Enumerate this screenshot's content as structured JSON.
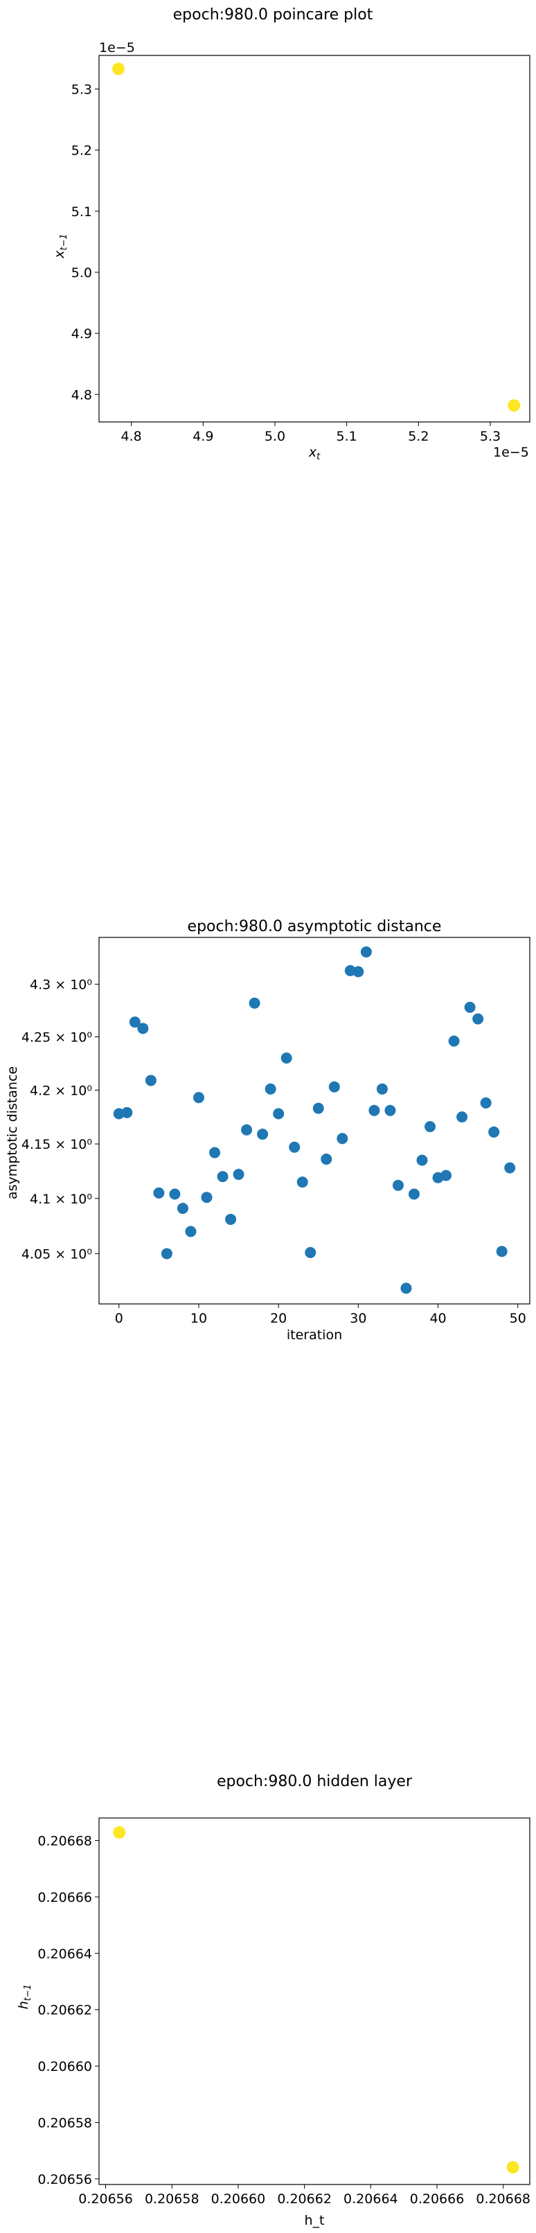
{
  "chart_data": [
    {
      "type": "scatter",
      "title": "epoch:980.0 poincare plot",
      "xlabel": "x_t",
      "ylabel": "x_{t-1}",
      "x_offset_text": "1e−5",
      "y_offset_text": "1e−5",
      "xlim": [
        4.755,
        5.355
      ],
      "ylim": [
        4.755,
        5.355
      ],
      "x_ticks": [
        4.8,
        4.9,
        5.0,
        5.1,
        5.2,
        5.3
      ],
      "y_ticks": [
        4.8,
        4.9,
        5.0,
        5.1,
        5.2,
        5.3
      ],
      "x_tick_labels": [
        "4.8",
        "4.9",
        "5.0",
        "5.1",
        "5.2",
        "5.3"
      ],
      "y_tick_labels": [
        "4.8",
        "4.9",
        "5.0",
        "5.1",
        "5.2",
        "5.3"
      ],
      "grid": false,
      "marker_color": "#fde725",
      "points": [
        {
          "x": 4.782,
          "y": 5.333
        },
        {
          "x": 5.333,
          "y": 4.782
        }
      ]
    },
    {
      "type": "scatter",
      "title": "epoch:980.0 asymptotic distance",
      "xlabel": "iteration",
      "ylabel": "asymptotic distance",
      "y_scale": "log",
      "xlim": [
        -2.5,
        51.5
      ],
      "ylim": [
        4.005,
        4.345
      ],
      "x_ticks": [
        0,
        10,
        20,
        30,
        40,
        50
      ],
      "x_tick_labels": [
        "0",
        "10",
        "20",
        "30",
        "40",
        "50"
      ],
      "y_ticks": [
        4.05,
        4.1,
        4.15,
        4.2,
        4.25,
        4.3
      ],
      "y_tick_labels": [
        "4.05 × 10⁰",
        "4.1 × 10⁰",
        "4.15 × 10⁰",
        "4.2 × 10⁰",
        "4.25 × 10⁰",
        "4.3 × 10⁰"
      ],
      "grid": false,
      "marker_color": "#1f77b4",
      "x": [
        0,
        1,
        2,
        3,
        4,
        5,
        6,
        7,
        8,
        9,
        10,
        11,
        12,
        13,
        14,
        15,
        16,
        17,
        18,
        19,
        20,
        21,
        22,
        23,
        24,
        25,
        26,
        27,
        28,
        29,
        30,
        31,
        32,
        33,
        34,
        35,
        36,
        37,
        38,
        39,
        40,
        41,
        42,
        43,
        44,
        45,
        46,
        47,
        48,
        49
      ],
      "y": [
        4.178,
        4.179,
        4.264,
        4.258,
        4.209,
        4.105,
        4.05,
        4.104,
        4.091,
        4.07,
        4.193,
        4.101,
        4.142,
        4.12,
        4.081,
        4.122,
        4.163,
        4.282,
        4.159,
        4.201,
        4.178,
        4.23,
        4.147,
        4.115,
        4.051,
        4.183,
        4.136,
        4.203,
        4.155,
        4.313,
        4.312,
        4.331,
        4.181,
        4.201,
        4.181,
        4.112,
        4.019,
        4.104,
        4.135,
        4.166,
        4.119,
        4.121,
        4.246,
        4.175,
        4.278,
        4.267,
        4.188,
        4.161,
        4.052,
        4.128
      ]
    },
    {
      "type": "scatter",
      "title": "epoch:980.0 hidden layer",
      "xlabel": "h_t",
      "ylabel": "h_{t-1}",
      "xlim": [
        0.206558,
        0.206688
      ],
      "ylim": [
        0.206558,
        0.206688
      ],
      "x_ticks": [
        0.20656,
        0.20658,
        0.2066,
        0.20662,
        0.20664,
        0.20666,
        0.20668
      ],
      "y_ticks": [
        0.20656,
        0.20658,
        0.2066,
        0.20662,
        0.20664,
        0.20666,
        0.20668
      ],
      "x_tick_labels": [
        "0.20656",
        "0.20658",
        "0.20660",
        "0.20662",
        "0.20664",
        "0.20666",
        "0.20668"
      ],
      "y_tick_labels": [
        "0.20656",
        "0.20658",
        "0.20660",
        "0.20662",
        "0.20664",
        "0.20666",
        "0.20668"
      ],
      "grid": false,
      "marker_color": "#fde725",
      "points": [
        {
          "x": 0.2065641,
          "y": 0.2066829
        },
        {
          "x": 0.2066829,
          "y": 0.2065641
        }
      ]
    }
  ]
}
